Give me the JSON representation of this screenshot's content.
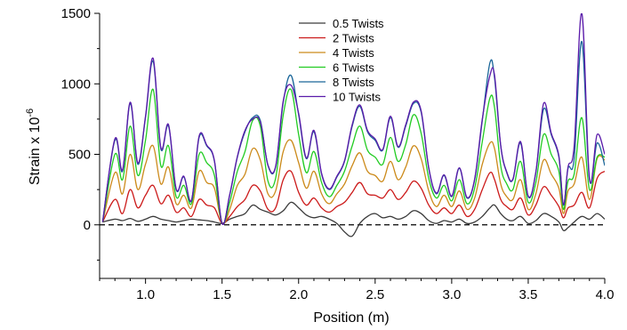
{
  "chart_data": {
    "type": "line",
    "xlabel": "Position (m)",
    "ylabel_main": "Strain x 10",
    "ylabel_exp": "-6",
    "xlim": [
      0.7,
      4.0
    ],
    "ylim": [
      -380,
      1500
    ],
    "x_ticks": [
      "1.0",
      "1.5",
      "2.0",
      "2.5",
      "3.0",
      "3.5",
      "4.0"
    ],
    "y_ticks": [
      "0",
      "500",
      "1000",
      "1500"
    ],
    "grid": false,
    "zero_line": "dashed",
    "legend_position": "top-center",
    "x": [
      0.72,
      0.8,
      0.85,
      0.9,
      0.95,
      1.0,
      1.05,
      1.1,
      1.15,
      1.2,
      1.25,
      1.3,
      1.35,
      1.4,
      1.45,
      1.5,
      1.55,
      1.6,
      1.65,
      1.7,
      1.75,
      1.8,
      1.85,
      1.9,
      1.95,
      2.0,
      2.05,
      2.1,
      2.15,
      2.2,
      2.25,
      2.3,
      2.35,
      2.4,
      2.45,
      2.5,
      2.55,
      2.6,
      2.65,
      2.7,
      2.75,
      2.8,
      2.85,
      2.9,
      2.95,
      3.0,
      3.05,
      3.1,
      3.15,
      3.2,
      3.25,
      3.28,
      3.32,
      3.36,
      3.4,
      3.45,
      3.5,
      3.55,
      3.6,
      3.65,
      3.7,
      3.73,
      3.76,
      3.8,
      3.85,
      3.9,
      3.95,
      4.0
    ],
    "series": [
      {
        "name": "0.5 Twists",
        "color": "#3a3a3a",
        "values": [
          20,
          40,
          30,
          45,
          25,
          40,
          60,
          40,
          30,
          20,
          30,
          40,
          35,
          30,
          20,
          10,
          40,
          60,
          80,
          140,
          110,
          90,
          70,
          100,
          160,
          120,
          70,
          50,
          60,
          40,
          10,
          -50,
          -80,
          10,
          60,
          80,
          50,
          60,
          40,
          60,
          100,
          80,
          30,
          10,
          30,
          20,
          40,
          10,
          20,
          60,
          120,
          140,
          80,
          40,
          30,
          60,
          10,
          30,
          80,
          60,
          20,
          -40,
          -20,
          20,
          60,
          40,
          80,
          40
        ]
      },
      {
        "name": "2 Twists",
        "color": "#cc1a1a",
        "values": [
          20,
          180,
          80,
          250,
          120,
          210,
          280,
          150,
          210,
          90,
          120,
          60,
          180,
          140,
          120,
          10,
          60,
          130,
          180,
          280,
          240,
          110,
          120,
          320,
          380,
          230,
          140,
          190,
          120,
          90,
          130,
          160,
          230,
          300,
          220,
          210,
          190,
          250,
          180,
          230,
          310,
          260,
          140,
          80,
          120,
          80,
          140,
          60,
          110,
          250,
          370,
          320,
          180,
          130,
          110,
          190,
          70,
          140,
          270,
          210,
          130,
          50,
          120,
          140,
          230,
          120,
          330,
          380
        ]
      },
      {
        "name": "4 Twists",
        "color": "#cc8a1a",
        "values": [
          20,
          370,
          220,
          500,
          250,
          430,
          560,
          290,
          410,
          150,
          210,
          120,
          380,
          300,
          260,
          10,
          110,
          280,
          360,
          540,
          460,
          220,
          240,
          520,
          600,
          440,
          260,
          380,
          220,
          150,
          220,
          290,
          420,
          510,
          380,
          350,
          310,
          450,
          320,
          410,
          560,
          470,
          240,
          130,
          210,
          130,
          240,
          110,
          190,
          430,
          580,
          540,
          290,
          200,
          180,
          320,
          110,
          220,
          460,
          360,
          260,
          80,
          240,
          290,
          480,
          180,
          470,
          460
        ]
      },
      {
        "name": "6 Twists",
        "color": "#22cc22",
        "values": [
          20,
          500,
          320,
          700,
          350,
          600,
          960,
          420,
          560,
          200,
          280,
          150,
          500,
          440,
          350,
          10,
          160,
          380,
          520,
          740,
          700,
          310,
          330,
          780,
          960,
          640,
          370,
          520,
          300,
          200,
          280,
          380,
          560,
          700,
          530,
          480,
          430,
          620,
          450,
          570,
          780,
          650,
          330,
          190,
          280,
          170,
          320,
          150,
          260,
          590,
          900,
          830,
          420,
          290,
          250,
          450,
          160,
          300,
          640,
          500,
          380,
          110,
          310,
          360,
          760,
          250,
          480,
          480
        ]
      },
      {
        "name": "8 Twists",
        "color": "#1a6699",
        "values": [
          20,
          600,
          380,
          860,
          430,
          760,
          1160,
          540,
          700,
          250,
          340,
          170,
          620,
          560,
          450,
          10,
          210,
          480,
          660,
          760,
          740,
          420,
          410,
          870,
          1060,
          780,
          470,
          660,
          360,
          250,
          340,
          450,
          700,
          840,
          660,
          600,
          530,
          760,
          550,
          700,
          860,
          800,
          400,
          220,
          350,
          200,
          400,
          190,
          320,
          740,
          1150,
          1040,
          560,
          370,
          320,
          580,
          200,
          370,
          820,
          640,
          480,
          140,
          400,
          470,
          1300,
          320,
          580,
          420
        ]
      },
      {
        "name": "10 Twists",
        "color": "#5a1aaa",
        "values": [
          20,
          610,
          390,
          870,
          440,
          770,
          1180,
          550,
          710,
          255,
          345,
          175,
          630,
          565,
          455,
          10,
          215,
          485,
          670,
          750,
          730,
          425,
          415,
          880,
          990,
          790,
          475,
          670,
          365,
          255,
          345,
          455,
          710,
          850,
          670,
          610,
          535,
          770,
          555,
          710,
          870,
          810,
          405,
          225,
          355,
          205,
          405,
          195,
          325,
          750,
          1060,
          1060,
          565,
          375,
          325,
          590,
          205,
          375,
          860,
          650,
          490,
          145,
          410,
          560,
          1500,
          330,
          640,
          500
        ]
      }
    ]
  }
}
